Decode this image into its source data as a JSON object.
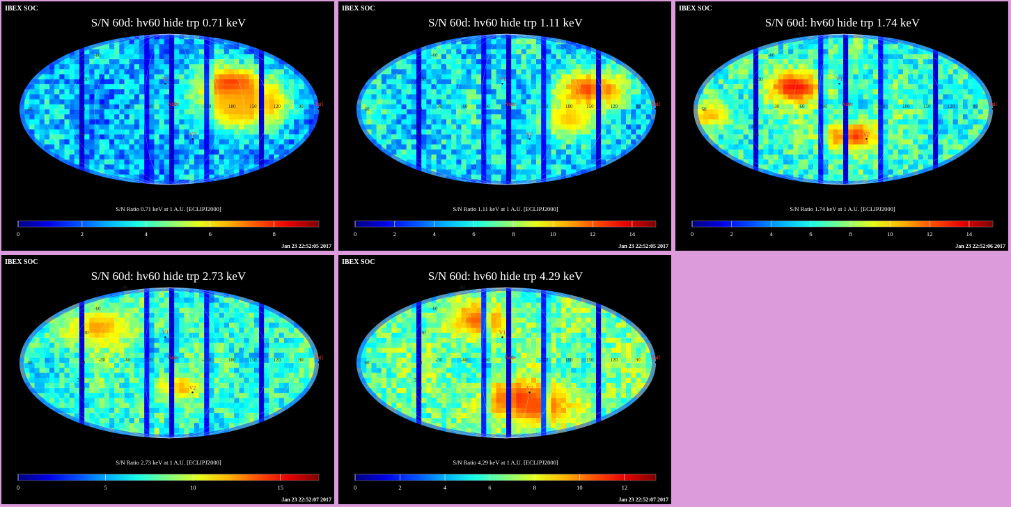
{
  "panels": [
    {
      "label": "IBEX SOC",
      "title": "S/N  60d: hv60 hide trp 0.71 keV",
      "colorbar_label": "S/N Ratio 0.71 keV at 1 A.U. [ECLIPJ2000]",
      "colorbar_ticks": [
        "0",
        "2",
        "4",
        "6",
        "8"
      ],
      "colorbar_max": 9.4,
      "timestamp": "Jan 23 22:52:05 2017",
      "markers": [
        {
          "text": "V1",
          "lon": -5,
          "lat": 34
        },
        {
          "text": "Nose",
          "lon": 5,
          "lat": 4
        },
        {
          "text": "V2",
          "lon": 30,
          "lat": -32
        },
        {
          "text": "Tail",
          "lon": 180,
          "lat": 4
        }
      ],
      "grid_labels": [
        "60",
        "30",
        "0",
        "-30",
        "-60",
        "-90",
        "-120",
        "-150",
        "180",
        "150",
        "120",
        "90",
        "60",
        "30",
        "-30",
        "-60",
        "-90"
      ]
    },
    {
      "label": "IBEX SOC",
      "title": "S/N  60d: hv60 hide trp 1.11 keV",
      "colorbar_label": "S/N Ratio 1.11 keV at 1 A.U. [ECLIPJ2000]",
      "colorbar_ticks": [
        "0",
        "2",
        "4",
        "6",
        "8",
        "10",
        "12",
        "14"
      ],
      "colorbar_max": 15.2,
      "timestamp": "Jan 23 22:52:05 2017",
      "markers": [
        {
          "text": "V1",
          "lon": -5,
          "lat": 34
        },
        {
          "text": "Nose",
          "lon": 5,
          "lat": 4
        },
        {
          "text": "V2",
          "lon": 30,
          "lat": -32
        },
        {
          "text": "Tail",
          "lon": 180,
          "lat": 4
        }
      ],
      "grid_labels": [
        "60",
        "30",
        "0",
        "-30",
        "-60",
        "-90",
        "-120",
        "-150",
        "180",
        "150",
        "120",
        "90",
        "60",
        "30",
        "-30",
        "-60",
        "-90"
      ]
    },
    {
      "label": "IBEX SOC",
      "title": "S/N  60d: hv60 hide trp 1.74 keV",
      "colorbar_label": "S/N Ratio 1.74 keV at 1 A.U. [ECLIPJ2000]",
      "colorbar_ticks": [
        "0",
        "2",
        "4",
        "6",
        "8",
        "10",
        "12",
        "14"
      ],
      "colorbar_max": 15.2,
      "timestamp": "Jan 23 22:52:06 2017",
      "markers": [
        {
          "text": "V1",
          "lon": -5,
          "lat": 34
        },
        {
          "text": "Nose",
          "lon": 5,
          "lat": 4
        },
        {
          "text": "V2",
          "lon": 30,
          "lat": -32
        },
        {
          "text": "Tail",
          "lon": 180,
          "lat": 4
        }
      ],
      "grid_labels": [
        "60",
        "30",
        "0",
        "-30",
        "-60",
        "-90",
        "-120",
        "-150",
        "180",
        "150",
        "120",
        "90",
        "60",
        "30",
        "-30",
        "-60",
        "-90"
      ]
    },
    {
      "label": "IBEX SOC",
      "title": "S/N  60d: hv60 hide trp 2.73 keV",
      "colorbar_label": "S/N Ratio 2.73 keV at 1 A.U. [ECLIPJ2000]",
      "colorbar_ticks": [
        "0",
        "5",
        "10",
        "15"
      ],
      "colorbar_max": 17.2,
      "timestamp": "Jan 23 22:52:07 2017",
      "markers": [
        {
          "text": "V1",
          "lon": -5,
          "lat": 34
        },
        {
          "text": "Nose",
          "lon": 5,
          "lat": 4
        },
        {
          "text": "V2",
          "lon": 30,
          "lat": -32
        },
        {
          "text": "Tail",
          "lon": 180,
          "lat": 4
        }
      ],
      "grid_labels": [
        "60",
        "30",
        "0",
        "-30",
        "-60",
        "-90",
        "-120",
        "-150",
        "180",
        "150",
        "120",
        "90",
        "60",
        "30",
        "-30",
        "-60",
        "-90"
      ]
    },
    {
      "label": "IBEX SOC",
      "title": "S/N  60d: hv60 hide trp 4.29 keV",
      "colorbar_label": "S/N Ratio 4.29 keV at 1 A.U. [ECLIPJ2000]",
      "colorbar_ticks": [
        "0",
        "2",
        "4",
        "6",
        "8",
        "10",
        "12"
      ],
      "colorbar_max": 13.4,
      "timestamp": "Jan 23 22:52:07 2017",
      "markers": [
        {
          "text": "V1",
          "lon": -5,
          "lat": 34
        },
        {
          "text": "Nose",
          "lon": 5,
          "lat": 4
        },
        {
          "text": "V2",
          "lon": 30,
          "lat": -32
        },
        {
          "text": "Tail",
          "lon": 180,
          "lat": 4
        }
      ],
      "grid_labels": [
        "60",
        "30",
        "0",
        "-30",
        "-60",
        "-90",
        "-120",
        "-150",
        "180",
        "150",
        "120",
        "90",
        "60",
        "30",
        "-30",
        "-60",
        "-90"
      ]
    }
  ],
  "colors": {
    "background": "#dc9cdc",
    "panel": "#000000",
    "text": "#ffffff",
    "marker": "#ff3030",
    "grid_label": "#2a2a2a"
  }
}
